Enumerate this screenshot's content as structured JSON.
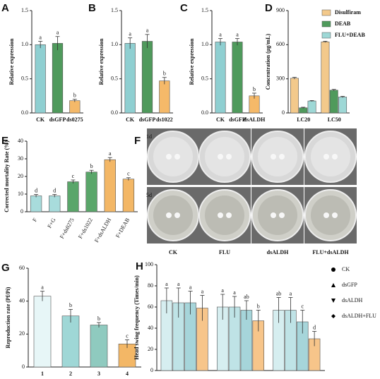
{
  "chart_data": [
    {
      "type": "bar",
      "panel": "A",
      "ylabel": "Relative expression",
      "categories": [
        "CK",
        "dsGFP",
        "ds0275"
      ],
      "values": [
        1.0,
        1.02,
        0.18
      ],
      "errors": [
        0.05,
        0.1,
        0.02
      ],
      "letters": [
        "a",
        "a",
        "b"
      ],
      "colors": [
        "#8fcfd1",
        "#4f9a5c",
        "#f5b969"
      ],
      "ylim": [
        0,
        1.5
      ],
      "yticks": [
        {
          "value": 0,
          "label": "0.0"
        },
        {
          "value": 0.5,
          "label": "0.5"
        },
        {
          "value": 1,
          "label": "1.0"
        },
        {
          "value": 1.5,
          "label": "1.5"
        }
      ]
    },
    {
      "type": "bar",
      "panel": "B",
      "ylabel": "Relative expression",
      "categories": [
        "CK",
        "dsGFP",
        "ds1022"
      ],
      "values": [
        1.02,
        1.05,
        0.47
      ],
      "errors": [
        0.08,
        0.1,
        0.05
      ],
      "letters": [
        "a",
        "a",
        "b"
      ],
      "colors": [
        "#8fcfd1",
        "#4f9a5c",
        "#f5b969"
      ],
      "ylim": [
        0,
        1.5
      ],
      "yticks": [
        {
          "value": 0,
          "label": "0.0"
        },
        {
          "value": 0.5,
          "label": "0.5"
        },
        {
          "value": 1,
          "label": "1.0"
        },
        {
          "value": 1.5,
          "label": "1.5"
        }
      ]
    },
    {
      "type": "bar",
      "panel": "C",
      "ylabel": "Relative expression",
      "categories": [
        "CK",
        "dsGFP",
        "dsALDH"
      ],
      "values": [
        1.04,
        1.04,
        0.25
      ],
      "errors": [
        0.05,
        0.05,
        0.04
      ],
      "letters": [
        "a",
        "a",
        "b"
      ],
      "colors": [
        "#8fcfd1",
        "#4f9a5c",
        "#f5b969"
      ],
      "ylim": [
        0,
        1.5
      ],
      "yticks": [
        {
          "value": 0,
          "label": "0.0"
        },
        {
          "value": 0.5,
          "label": "0.5"
        },
        {
          "value": 1,
          "label": "1.0"
        },
        {
          "value": 1.5,
          "label": "1.5"
        }
      ]
    },
    {
      "type": "bar",
      "panel": "D",
      "ylabel": "Concentration (μg/mL)",
      "categories": [
        "LC20",
        "LC50"
      ],
      "series": [
        {
          "name": "Disulfiram",
          "color": "#f3c98b",
          "values": [
            305,
            625
          ],
          "errors": [
            8,
            5
          ]
        },
        {
          "name": "DEAB",
          "color": "#4f9a5c",
          "values": [
            45,
            200
          ],
          "errors": [
            5,
            7
          ]
        },
        {
          "name": "FLU+DEAB",
          "color": "#9ed8d6",
          "values": [
            105,
            140
          ],
          "errors": [
            4,
            6
          ]
        }
      ],
      "ylim": [
        0,
        900
      ],
      "yticks": [
        0,
        300,
        600,
        900
      ],
      "legend": "upper right"
    },
    {
      "type": "bar",
      "panel": "E",
      "ylabel": "Corrected mortality Rate (%)",
      "categories": [
        "F",
        "F+G",
        "F+ds0275",
        "F+ds1022",
        "F+dsALDH",
        "F+DEAB"
      ],
      "values": [
        9,
        9,
        17,
        22.5,
        29.5,
        18.5
      ],
      "errors": [
        0.8,
        0.8,
        1,
        1,
        1.2,
        0.8
      ],
      "letters": [
        "d",
        "d",
        "c",
        "b",
        "a",
        "c"
      ],
      "colors": [
        "#a8dcdc",
        "#a8dcdc",
        "#5aa66a",
        "#5aa66a",
        "#f3b766",
        "#f3b766"
      ],
      "ylim": [
        0,
        40
      ],
      "yticks": [
        0,
        10,
        20,
        30,
        40
      ]
    },
    {
      "type": "bar",
      "panel": "G",
      "ylabel": "Reproduction rate (Pf/Pi)",
      "categories": [
        "1",
        "2",
        "3",
        "4"
      ],
      "values": [
        43,
        31,
        25.5,
        14
      ],
      "errors": [
        3,
        4,
        1.5,
        2.5
      ],
      "letters": [
        "a",
        "b",
        "b",
        "c"
      ],
      "colors": [
        "#e7f6f7",
        "#9fd7d6",
        "#8fcabf",
        "#f3b766"
      ],
      "ylim": [
        0,
        60
      ],
      "yticks": [
        0,
        20,
        40,
        60
      ]
    },
    {
      "type": "bar",
      "panel": "H",
      "ylabel": "Head swing frequency (Times/min)",
      "categories": [
        null,
        null,
        null
      ],
      "series": [
        {
          "name": "CK",
          "color": "#d6eef0",
          "marker": "circle",
          "values": [
            66,
            60,
            57
          ],
          "errors": [
            12,
            12,
            12
          ],
          "letters": [
            "a",
            "a",
            "ab"
          ]
        },
        {
          "name": "dsGFP",
          "color": "#bfe3e6",
          "marker": "triangle",
          "values": [
            64,
            60,
            57
          ],
          "errors": [
            14,
            10,
            12
          ],
          "letters": [
            "a",
            "a",
            "a"
          ]
        },
        {
          "name": "dsALDH",
          "color": "#a6d5da",
          "marker": "triangle-down",
          "values": [
            64,
            57,
            46
          ],
          "errors": [
            11,
            9,
            11
          ],
          "letters": [
            "a",
            "ab",
            "c"
          ]
        },
        {
          "name": "dsALDH+FLU",
          "color": "#f7c58a",
          "marker": "diamond",
          "values": [
            59,
            47,
            30
          ],
          "errors": [
            12,
            10,
            7
          ],
          "letters": [
            "a",
            "b",
            "d"
          ]
        }
      ],
      "ylim": [
        0,
        100
      ],
      "yticks": [
        0,
        20,
        40,
        60,
        80,
        100
      ],
      "legend": "right"
    }
  ],
  "image_panel": {
    "panel": "F",
    "row_labels": [
      "1d",
      "5d"
    ],
    "column_labels": [
      "CK",
      "FLU",
      "dsALDH",
      "FLU+dsALDH"
    ]
  }
}
